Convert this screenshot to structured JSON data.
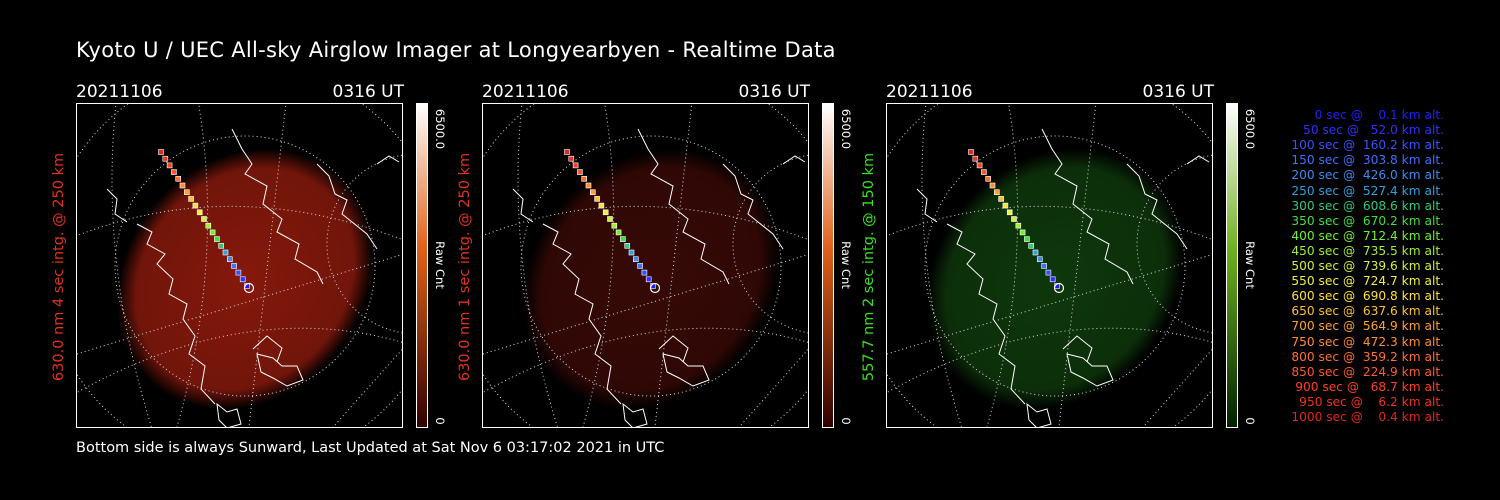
{
  "title": "Kyoto U / UEC All-sky Airglow Imager at Longyearbyen - Realtime Data",
  "footer": "Bottom side is always Sunward, Last Updated at Sat Nov  6 03:17:02 2021 in UTC",
  "panels": [
    {
      "date": "20211106",
      "time": "0316 UT",
      "ylabel": "630.0 nm 4 sec intg. @ 250 km",
      "label_color": "#e0321e",
      "colorbar": {
        "max": "6500.0",
        "min": "0",
        "unit": "Raw Cnt",
        "top_color": "#ffffff",
        "mid_color": "#e06018",
        "bottom_color": "#300000"
      },
      "image_color": "#8c1a0c",
      "image_opacity": 0.95
    },
    {
      "date": "20211106",
      "time": "0316 UT",
      "ylabel": "630.0 nm 1 sec intg. @ 250 km",
      "label_color": "#e0321e",
      "colorbar": {
        "max": "6500.0",
        "min": "0",
        "unit": "Raw Cnt",
        "top_color": "#ffffff",
        "mid_color": "#e06018",
        "bottom_color": "#300000"
      },
      "image_color": "#3a0a06",
      "image_opacity": 0.95
    },
    {
      "date": "20211106",
      "time": "0316 UT",
      "ylabel": "557.7 nm 2 sec intg. @ 150 km",
      "label_color": "#38e020",
      "colorbar": {
        "max": "6500.0",
        "min": "0",
        "unit": "Raw Cnt",
        "top_color": "#ffffff",
        "mid_color": "#70b020",
        "bottom_color": "#002000"
      },
      "image_color": "#0f3a0c",
      "image_opacity": 0.95
    }
  ],
  "legend": [
    {
      "text": "   0 sec @    0.1 km alt.",
      "color": "#2020ff"
    },
    {
      "text": "  50 sec @   52.0 km alt.",
      "color": "#3030ff"
    },
    {
      "text": " 100 sec @  160.2 km alt.",
      "color": "#3a50ff"
    },
    {
      "text": " 150 sec @  303.8 km alt.",
      "color": "#4070ff"
    },
    {
      "text": " 200 sec @  426.0 km alt.",
      "color": "#3a8cf0"
    },
    {
      "text": " 250 sec @  527.4 km alt.",
      "color": "#30a0e0"
    },
    {
      "text": " 300 sec @  608.6 km alt.",
      "color": "#30c880"
    },
    {
      "text": " 350 sec @  670.2 km alt.",
      "color": "#40e040"
    },
    {
      "text": " 400 sec @  712.4 km alt.",
      "color": "#70f030"
    },
    {
      "text": " 450 sec @  735.5 km alt.",
      "color": "#a0f030"
    },
    {
      "text": " 500 sec @  739.6 km alt.",
      "color": "#d0f040"
    },
    {
      "text": " 550 sec @  724.7 km alt.",
      "color": "#f0f040"
    },
    {
      "text": " 600 sec @  690.8 km alt.",
      "color": "#ffe040"
    },
    {
      "text": " 650 sec @  637.6 km alt.",
      "color": "#ffc030"
    },
    {
      "text": " 700 sec @  564.9 km alt.",
      "color": "#ffa030"
    },
    {
      "text": " 750 sec @  472.3 km alt.",
      "color": "#ff8c30"
    },
    {
      "text": " 800 sec @  359.2 km alt.",
      "color": "#ff7030"
    },
    {
      "text": " 850 sec @  224.9 km alt.",
      "color": "#ff5a28"
    },
    {
      "text": " 900 sec @   68.7 km alt.",
      "color": "#ff4020"
    },
    {
      "text": " 950 sec @    6.2 km alt.",
      "color": "#f03020"
    },
    {
      "text": "1000 sec @    0.4 km alt.",
      "color": "#e02818"
    }
  ]
}
